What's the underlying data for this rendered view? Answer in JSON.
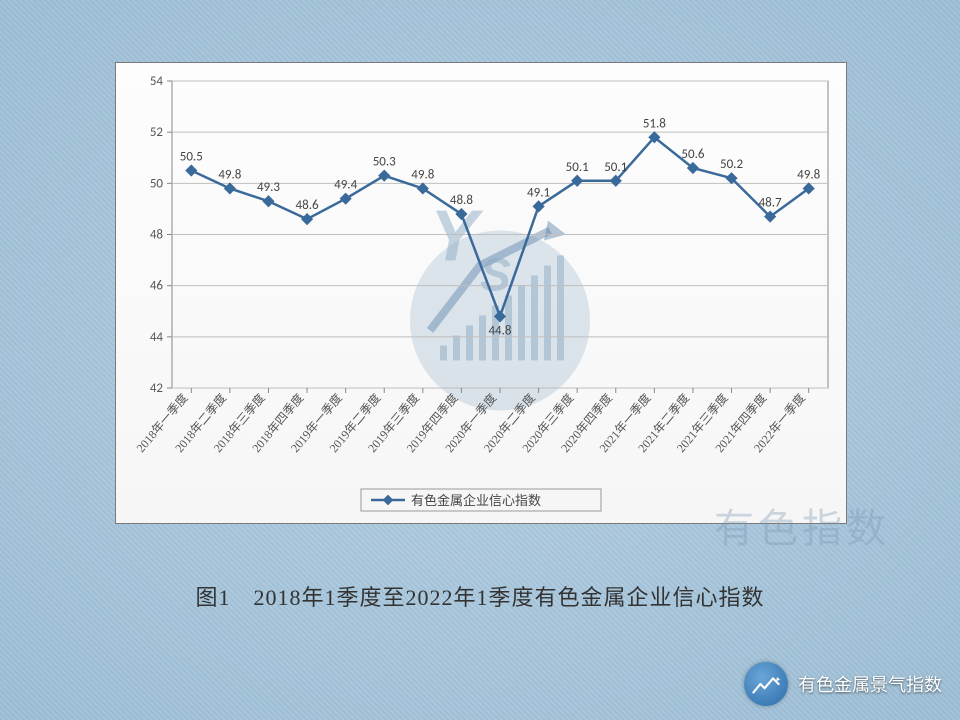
{
  "chart": {
    "type": "line",
    "series_name": "有色金属企业信心指数",
    "categories": [
      "2018年一季度",
      "2018年二季度",
      "2018年三季度",
      "2018年四季度",
      "2019年一季度",
      "2019年二季度",
      "2019年三季度",
      "2019年四季度",
      "2020年一季度",
      "2020年二季度",
      "2020年三季度",
      "2020年四季度",
      "2021年一季度",
      "2021年二季度",
      "2021年三季度",
      "2021年四季度",
      "2022年一季度"
    ],
    "values": [
      50.5,
      49.8,
      49.3,
      48.6,
      49.4,
      50.3,
      49.8,
      48.8,
      44.8,
      49.1,
      50.1,
      50.1,
      51.8,
      50.6,
      50.2,
      48.7,
      49.8
    ],
    "line_color": "#3a6a9a",
    "marker_color": "#3a6a9a",
    "marker_style": "diamond",
    "marker_size": 7,
    "line_width": 2.5,
    "ylim": [
      42,
      54
    ],
    "ytick_step": 2,
    "label_fontsize": 11,
    "datalabel_fontsize": 12,
    "axis_color": "#888888",
    "grid_color": "#bfbfbf",
    "legend_position": "bottom",
    "plot_background": "#ffffff",
    "panel_border": "#7a7a7a",
    "plot_border": "#888888"
  },
  "caption": "图1　2018年1季度至2022年1季度有色金属企业信心指数",
  "watermark": {
    "text_big": "YS",
    "text_small": "有色指数"
  },
  "source": "有色金属景气指数",
  "page_background": "#cfe0eb"
}
